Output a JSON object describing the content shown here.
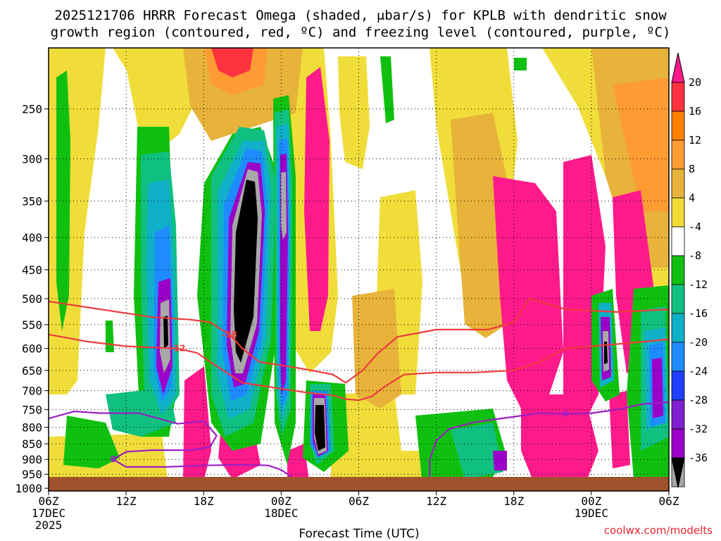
{
  "chart_data": {
    "type": "heatmap",
    "title_line1": "2025121706 HRRR Forecast Omega (shaded, μbar/s) for KPLB with dendritic snow",
    "title_line2": "growth region (contoured, red, ºC) and freezing level (contoured, purple, ºC)",
    "xlabel": "Forecast Time (UTC)",
    "credit": "coolwx.com/modelts",
    "x_ticks": [
      {
        "hour": 0,
        "l1": "06Z",
        "l2": "17DEC",
        "l3": "2025"
      },
      {
        "hour": 6,
        "l1": "12Z"
      },
      {
        "hour": 12,
        "l1": "18Z"
      },
      {
        "hour": 18,
        "l1": "00Z",
        "l2": "18DEC"
      },
      {
        "hour": 24,
        "l1": "06Z"
      },
      {
        "hour": 30,
        "l1": "12Z"
      },
      {
        "hour": 36,
        "l1": "18Z"
      },
      {
        "hour": 42,
        "l1": "00Z",
        "l2": "19DEC"
      },
      {
        "hour": 48,
        "l1": "06Z"
      }
    ],
    "y_ticks": [
      250,
      300,
      350,
      400,
      450,
      500,
      550,
      600,
      650,
      700,
      750,
      800,
      850,
      900,
      950,
      1000
    ],
    "x_range_hours": [
      0,
      48
    ],
    "y_range_hpa": [
      200,
      1010
    ],
    "colorbar": {
      "levels": [
        "20",
        "16",
        "12",
        "8",
        "4",
        "-4",
        "-8",
        "-12",
        "-16",
        "-20",
        "-24",
        "-28",
        "-32",
        "-36"
      ],
      "colors": [
        "#ff1a8c",
        "#ff3340",
        "#ff7f00",
        "#ff9b33",
        "#e8b33a",
        "#f0dd3a",
        "#ffffff",
        "#10c010",
        "#10c080",
        "#10b0c8",
        "#1e8cff",
        "#2040ff",
        "#8020d0",
        "#9a00c8",
        "#a8a8a8",
        "#000000"
      ]
    },
    "contour_labels": {
      "dgz_upper": "-18",
      "dgz_lower": "-12",
      "freezing": "0"
    },
    "series": [
      {
        "name": "-18C (DGZ upper)",
        "points": [
          [
            0,
            505
          ],
          [
            4,
            520
          ],
          [
            8,
            535
          ],
          [
            11,
            540
          ],
          [
            12.5,
            545
          ],
          [
            14,
            570
          ],
          [
            15,
            600
          ],
          [
            16.3,
            630
          ],
          [
            18,
            638
          ],
          [
            20,
            648
          ],
          [
            22,
            660
          ],
          [
            23,
            680
          ],
          [
            24.3,
            650
          ],
          [
            25.5,
            610
          ],
          [
            27,
            575
          ],
          [
            30,
            560
          ],
          [
            34,
            560
          ],
          [
            36,
            545
          ],
          [
            37.2,
            500
          ],
          [
            40,
            520
          ],
          [
            44,
            525
          ],
          [
            48,
            520
          ]
        ]
      },
      {
        "name": "-12C (DGZ lower)",
        "points": [
          [
            0,
            570
          ],
          [
            3,
            585
          ],
          [
            6,
            595
          ],
          [
            10,
            600
          ],
          [
            11.5,
            610
          ],
          [
            13,
            640
          ],
          [
            15,
            680
          ],
          [
            18,
            695
          ],
          [
            20,
            705
          ],
          [
            22,
            712
          ],
          [
            23,
            722
          ],
          [
            24,
            725
          ],
          [
            25,
            715
          ],
          [
            26,
            690
          ],
          [
            27.5,
            660
          ],
          [
            30,
            655
          ],
          [
            33,
            655
          ],
          [
            36,
            650
          ],
          [
            38,
            630
          ],
          [
            40,
            600
          ],
          [
            42,
            595
          ],
          [
            45,
            588
          ],
          [
            48,
            580
          ]
        ]
      },
      {
        "name": "0C freezing level",
        "points": [
          [
            0,
            775
          ],
          [
            2,
            755
          ],
          [
            4,
            760
          ],
          [
            7,
            760
          ],
          [
            9,
            780
          ],
          [
            10,
            790
          ],
          [
            12,
            782
          ],
          [
            13,
            825
          ],
          [
            12.5,
            860
          ],
          [
            11,
            870
          ],
          [
            8,
            870
          ],
          [
            6,
            875
          ],
          [
            5,
            900
          ],
          [
            6,
            925
          ],
          [
            9,
            925
          ],
          [
            12,
            920
          ],
          [
            15,
            918
          ],
          [
            17,
            920
          ],
          [
            18,
            935
          ],
          [
            19,
            965
          ],
          [
            19.8,
            1000
          ]
        ]
      },
      {
        "name": "0C freezing level (east)",
        "points": [
          [
            29,
            1005
          ],
          [
            29.5,
            960
          ],
          [
            29.5,
            900
          ],
          [
            30,
            840
          ],
          [
            31,
            805
          ],
          [
            33,
            785
          ],
          [
            36,
            770
          ],
          [
            38,
            760
          ],
          [
            40,
            762
          ],
          [
            42,
            760
          ],
          [
            44,
            750
          ],
          [
            46,
            735
          ],
          [
            48,
            730
          ]
        ]
      }
    ]
  }
}
